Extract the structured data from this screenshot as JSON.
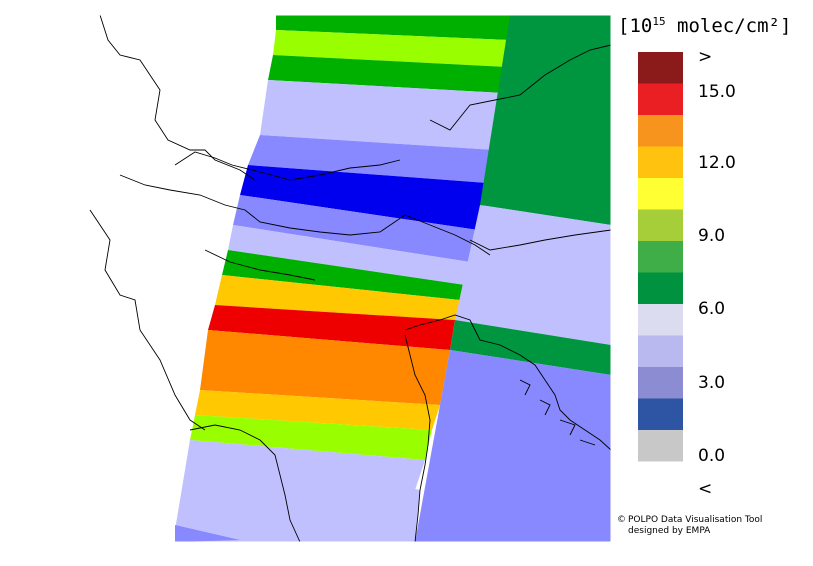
{
  "legend": {
    "title_prefix": "[10",
    "title_exp": "15",
    "title_suffix": " molec/cm²]",
    "ticks": [
      ">",
      "15.0",
      "12.0",
      "9.0",
      "6.0",
      "3.0",
      "0.0",
      "<"
    ],
    "classes": [
      {
        "range": "> 16.5",
        "color": "#8b1a1a"
      },
      {
        "range": "15.0-16.5",
        "color": "#ea1f24"
      },
      {
        "range": "13.5-15.0",
        "color": "#f7941d"
      },
      {
        "range": "12.0-13.5",
        "color": "#ffc20e"
      },
      {
        "range": "10.5-12.0",
        "color": "#ffff33"
      },
      {
        "range": "9.0-10.5",
        "color": "#a6ce39"
      },
      {
        "range": "7.5-9.0",
        "color": "#3fae49"
      },
      {
        "range": "6.0-7.5",
        "color": "#00923f"
      },
      {
        "range": "4.5-6.0",
        "color": "#dcdcf0"
      },
      {
        "range": "3.0-4.5",
        "color": "#b9b9f0"
      },
      {
        "range": "1.5-3.0",
        "color": "#8c8cd2"
      },
      {
        "range": "0.0-1.5",
        "color": "#2d55a3"
      },
      {
        "range": "< 0.0",
        "color": "#c8c8c8"
      }
    ]
  },
  "credit": {
    "symbol": "©",
    "line1": "POLPO Data Visualisation Tool",
    "line2": "designed by EMPA"
  },
  "colors": {
    "dark_green": "#00963f",
    "green": "#00b000",
    "lime": "#99ff00",
    "lavender": "#c0c0ff",
    "periwinkle": "#8888ff",
    "blue": "#0000ee",
    "orange": "#ffc800",
    "dark_orange": "#ff8800",
    "red": "#ee0000"
  }
}
